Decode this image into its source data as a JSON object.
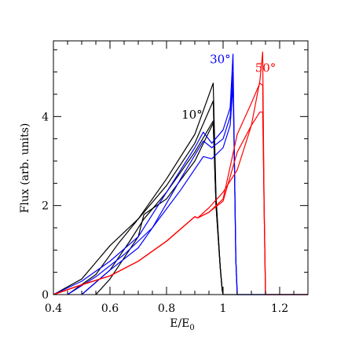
{
  "chart_data": {
    "type": "line",
    "title": "",
    "xlabel": "E/E",
    "xlabel_sub": "0",
    "ylabel": "Flux (arb. units)",
    "xlim": [
      0.4,
      1.3
    ],
    "ylim": [
      0,
      5.7
    ],
    "xticks": [
      0.4,
      0.6,
      0.8,
      1,
      1.2
    ],
    "xtick_labels": [
      "0.4",
      "0.6",
      "0.8",
      "1",
      "1.2"
    ],
    "yticks": [
      0,
      2,
      4
    ],
    "ytick_labels": [
      "0",
      "2",
      "4"
    ],
    "grid": false,
    "legend": "none",
    "annotations": [
      {
        "text": "10°",
        "x": 0.89,
        "y": 3.95,
        "color": "#000000"
      },
      {
        "text": "30°",
        "x": 0.99,
        "y": 5.2,
        "color": "#0000ff"
      },
      {
        "text": "50°",
        "x": 1.15,
        "y": 5.0,
        "color": "#ff0000"
      }
    ],
    "series": [
      {
        "color": "#000000",
        "x": [
          0.4,
          0.5,
          0.6,
          0.7,
          0.8,
          0.9,
          0.965,
          0.975,
          0.99,
          0.997,
          1.0
        ],
        "y": [
          0.0,
          0.35,
          1.1,
          1.7,
          2.6,
          3.6,
          4.75,
          2.2,
          0.6,
          0.1,
          0.0
        ]
      },
      {
        "color": "#000000",
        "x": [
          0.45,
          0.55,
          0.63,
          0.7,
          0.8,
          0.9,
          0.965,
          0.975,
          0.99,
          0.997,
          1.0
        ],
        "y": [
          0.0,
          0.45,
          1.15,
          1.7,
          2.45,
          3.4,
          4.35,
          2.1,
          0.6,
          0.1,
          0.0
        ]
      },
      {
        "color": "#000000",
        "x": [
          0.5,
          0.6,
          0.67,
          0.72,
          0.8,
          0.9,
          0.965,
          0.975,
          0.99,
          0.997,
          1.0
        ],
        "y": [
          0.0,
          0.55,
          1.2,
          1.7,
          2.3,
          3.2,
          3.9,
          2.0,
          0.6,
          0.1,
          0.0
        ]
      },
      {
        "color": "#000000",
        "x": [
          0.55,
          0.6,
          0.7,
          0.72,
          0.8,
          0.9,
          0.965,
          0.975,
          0.99,
          0.997,
          1.0
        ],
        "y": [
          0.0,
          0.35,
          1.3,
          1.8,
          2.15,
          3.0,
          3.85,
          2.0,
          0.6,
          0.1,
          0.0
        ]
      },
      {
        "color": "#0000ff",
        "x": [
          0.4,
          0.5,
          0.6,
          0.7,
          0.8,
          0.9,
          0.93,
          0.96,
          1.0,
          1.025,
          1.035,
          1.04,
          1.045,
          1.05
        ],
        "y": [
          0.0,
          0.3,
          0.75,
          1.3,
          2.3,
          3.3,
          3.65,
          3.4,
          3.7,
          4.2,
          5.4,
          3.0,
          0.8,
          0.0
        ]
      },
      {
        "color": "#0000ff",
        "x": [
          0.45,
          0.55,
          0.65,
          0.75,
          0.85,
          0.93,
          0.96,
          1.0,
          1.025,
          1.035,
          1.04,
          1.045,
          1.05
        ],
        "y": [
          0.0,
          0.4,
          0.9,
          1.5,
          2.6,
          3.45,
          3.3,
          3.5,
          4.0,
          5.0,
          3.0,
          0.8,
          0.0
        ]
      },
      {
        "color": "#0000ff",
        "x": [
          0.5,
          0.6,
          0.7,
          0.75,
          0.85,
          0.93,
          0.96,
          1.0,
          1.025,
          1.035,
          1.04,
          1.045,
          1.05
        ],
        "y": [
          0.0,
          0.55,
          1.05,
          1.5,
          2.35,
          3.1,
          3.05,
          3.3,
          3.8,
          4.7,
          3.0,
          0.8,
          0.0
        ]
      },
      {
        "color": "#ff0000",
        "x": [
          0.4,
          0.5,
          0.6,
          0.7,
          0.8,
          0.9,
          0.91,
          0.95,
          1.0,
          1.05,
          1.1,
          1.13,
          1.14,
          1.145,
          1.15
        ],
        "y": [
          0.0,
          0.22,
          0.42,
          0.75,
          1.2,
          1.75,
          1.72,
          1.95,
          2.3,
          2.8,
          3.8,
          4.8,
          5.45,
          2.0,
          0.0
        ]
      },
      {
        "color": "#ff0000",
        "x": [
          0.4,
          0.5,
          0.6,
          0.7,
          0.8,
          0.9,
          0.91,
          0.95,
          1.0,
          1.05,
          1.1,
          1.13,
          1.14,
          1.145,
          1.15
        ],
        "y": [
          0.0,
          0.22,
          0.42,
          0.75,
          1.2,
          1.75,
          1.72,
          1.85,
          2.15,
          3.6,
          4.3,
          4.75,
          4.7,
          2.0,
          0.0
        ]
      },
      {
        "color": "#ff0000",
        "x": [
          0.4,
          0.5,
          0.6,
          0.7,
          0.8,
          0.9,
          0.91,
          0.95,
          1.0,
          1.05,
          1.1,
          1.13,
          1.14,
          1.145,
          1.15
        ],
        "y": [
          0.0,
          0.22,
          0.42,
          0.75,
          1.2,
          1.75,
          1.72,
          1.85,
          2.1,
          3.2,
          3.8,
          4.1,
          4.1,
          2.0,
          0.0
        ]
      }
    ],
    "baselines": [
      {
        "color": "#000000",
        "x": [
          1.0,
          1.3
        ],
        "y": [
          0.0,
          0.0
        ]
      },
      {
        "color": "#0000ff",
        "x": [
          1.05,
          1.3
        ],
        "y": [
          0.0,
          0.0
        ]
      },
      {
        "color": "#ff0000",
        "x": [
          1.15,
          1.3
        ],
        "y": [
          0.0,
          0.0
        ]
      }
    ]
  }
}
